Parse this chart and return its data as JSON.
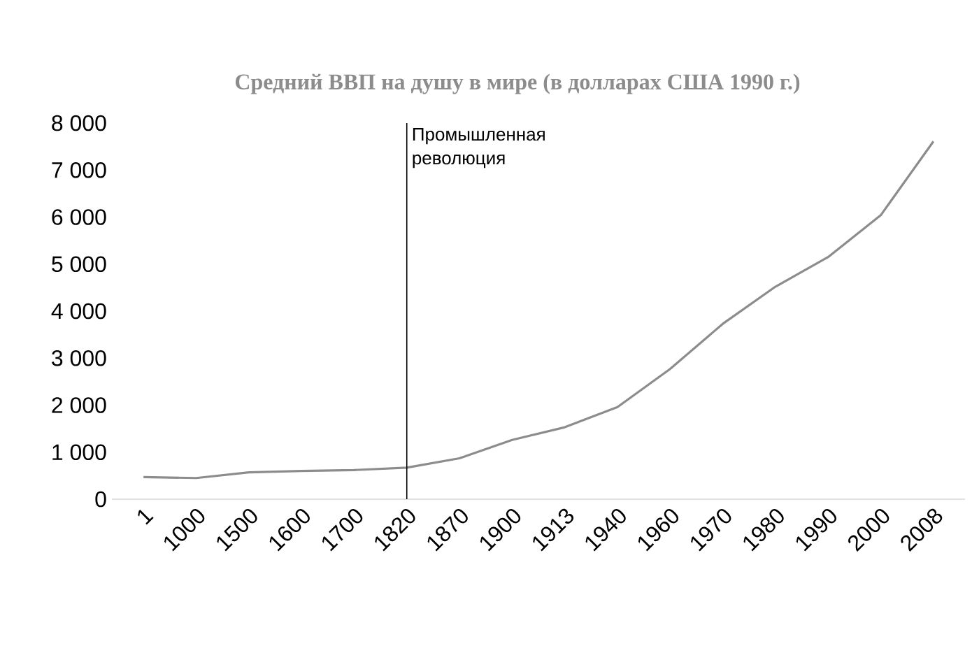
{
  "chart_data": {
    "type": "line",
    "title": "Средний ВВП на душу в мире (в долларах США 1990 г.)",
    "categories": [
      "1",
      "1000",
      "1500",
      "1600",
      "1700",
      "1820",
      "1870",
      "1900",
      "1913",
      "1940",
      "1960",
      "1970",
      "1980",
      "1990",
      "2000",
      "2008"
    ],
    "values": [
      470,
      450,
      570,
      600,
      620,
      670,
      870,
      1260,
      1530,
      1960,
      2770,
      3730,
      4520,
      5150,
      6040,
      7610
    ],
    "color": "#8c8c8c",
    "ylim": [
      0,
      8000
    ],
    "yticks": [
      0,
      {
        "value": 1000,
        "label": "1 000"
      },
      {
        "value": 2000,
        "label": "2 000"
      },
      {
        "value": 3000,
        "label": "3 000"
      },
      {
        "value": 4000,
        "label": "4 000"
      },
      {
        "value": 5000,
        "label": "5 000"
      },
      {
        "value": 6000,
        "label": "6 000"
      },
      {
        "value": 7000,
        "label": "7 000"
      },
      {
        "value": 8000,
        "label": "8 000"
      }
    ],
    "ref_lines": [
      {
        "axis": "x",
        "value": "1820",
        "label": "Промышленная революция",
        "color": "#000000"
      }
    ]
  }
}
